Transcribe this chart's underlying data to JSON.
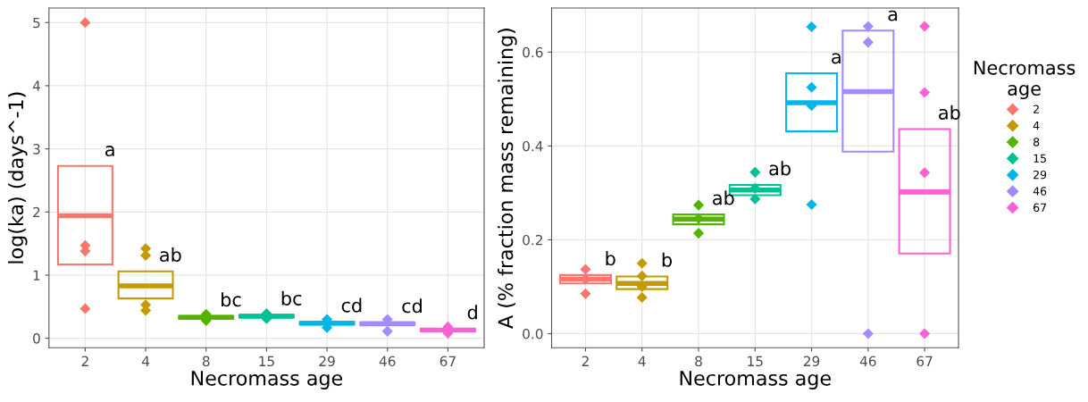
{
  "chart_data": [
    {
      "type": "box",
      "xlabel": "Necromass age",
      "ylabel": "log(ka) (days^-1)",
      "categories": [
        "2",
        "4",
        "8",
        "15",
        "29",
        "46",
        "67"
      ],
      "boxes": [
        {
          "q1": 1.17,
          "median": 1.94,
          "q3": 2.73
        },
        {
          "q1": 0.63,
          "median": 0.83,
          "q3": 1.06
        },
        {
          "q1": 0.31,
          "median": 0.33,
          "q3": 0.35
        },
        {
          "q1": 0.33,
          "median": 0.35,
          "q3": 0.37
        },
        {
          "q1": 0.22,
          "median": 0.24,
          "q3": 0.26
        },
        {
          "q1": 0.21,
          "median": 0.23,
          "q3": 0.25
        },
        {
          "q1": 0.11,
          "median": 0.13,
          "q3": 0.15
        }
      ],
      "colors": [
        "#f8766d",
        "#c49a00",
        "#53b400",
        "#00c094",
        "#00b6eb",
        "#a58aff",
        "#fb61d7"
      ],
      "series": [
        {
          "type": "scatter",
          "color": "#f8766d",
          "x": [
            "2",
            "2",
            "2",
            "2"
          ],
          "values": [
            5.0,
            1.38,
            1.47,
            0.47
          ]
        },
        {
          "type": "scatter",
          "color": "#c49a00",
          "x": [
            "4",
            "4",
            "4",
            "4"
          ],
          "values": [
            1.31,
            1.42,
            0.44,
            0.53
          ]
        },
        {
          "type": "scatter",
          "color": "#53b400",
          "x": [
            "8",
            "8"
          ],
          "values": [
            0.28,
            0.38
          ]
        },
        {
          "type": "scatter",
          "color": "#00c094",
          "x": [
            "15",
            "15"
          ],
          "values": [
            0.31,
            0.39
          ]
        },
        {
          "type": "scatter",
          "color": "#00b6eb",
          "x": [
            "29",
            "29"
          ],
          "values": [
            0.3,
            0.17
          ]
        },
        {
          "type": "scatter",
          "color": "#a58aff",
          "x": [
            "46",
            "46"
          ],
          "values": [
            0.3,
            0.11
          ]
        },
        {
          "type": "scatter",
          "color": "#fb61d7",
          "x": [
            "67",
            "67"
          ],
          "values": [
            0.18,
            0.08
          ]
        }
      ],
      "ylim": [
        -0.15,
        5.23
      ],
      "yticks": [
        0,
        1,
        2,
        3,
        4,
        5
      ],
      "grid": true,
      "legend": false,
      "marker": "diamond",
      "annotations": [
        {
          "text": "a",
          "x": "2",
          "y": 2.73
        },
        {
          "text": "ab",
          "x": "4",
          "y": 1.06
        },
        {
          "text": "bc",
          "x": "8",
          "y": 0.35
        },
        {
          "text": "bc",
          "x": "15",
          "y": 0.37
        },
        {
          "text": "cd",
          "x": "29",
          "y": 0.26
        },
        {
          "text": "cd",
          "x": "46",
          "y": 0.25
        },
        {
          "text": "d",
          "x": "67",
          "y": 0.15
        }
      ]
    },
    {
      "type": "box",
      "xlabel": "Necromass age",
      "ylabel": "A (% fraction mass remaining)",
      "categories": [
        "2",
        "4",
        "8",
        "15",
        "29",
        "46",
        "67"
      ],
      "boxes": [
        {
          "q1": 0.107,
          "median": 0.116,
          "q3": 0.125
        },
        {
          "q1": 0.095,
          "median": 0.107,
          "q3": 0.122
        },
        {
          "q1": 0.233,
          "median": 0.244,
          "q3": 0.254
        },
        {
          "q1": 0.295,
          "median": 0.306,
          "q3": 0.317
        },
        {
          "q1": 0.431,
          "median": 0.492,
          "q3": 0.555
        },
        {
          "q1": 0.388,
          "median": 0.516,
          "q3": 0.646
        },
        {
          "q1": 0.171,
          "median": 0.302,
          "q3": 0.436
        }
      ],
      "colors": [
        "#f8766d",
        "#c49a00",
        "#53b400",
        "#00c094",
        "#00b6eb",
        "#a58aff",
        "#fb61d7"
      ],
      "series": [
        {
          "type": "scatter",
          "name": "2",
          "color": "#f8766d",
          "x": [
            "2",
            "2",
            "2"
          ],
          "values": [
            0.137,
            0.116,
            0.085
          ]
        },
        {
          "type": "scatter",
          "name": "4",
          "color": "#c49a00",
          "x": [
            "4",
            "4",
            "4",
            "4"
          ],
          "values": [
            0.15,
            0.123,
            0.1,
            0.077
          ]
        },
        {
          "type": "scatter",
          "name": "8",
          "color": "#53b400",
          "x": [
            "8",
            "8",
            "8"
          ],
          "values": [
            0.274,
            0.245,
            0.214
          ]
        },
        {
          "type": "scatter",
          "name": "15",
          "color": "#00c094",
          "x": [
            "15",
            "15",
            "15"
          ],
          "values": [
            0.344,
            0.31,
            0.287
          ]
        },
        {
          "type": "scatter",
          "name": "29",
          "color": "#00b6eb",
          "x": [
            "29",
            "29",
            "29",
            "29"
          ],
          "values": [
            0.654,
            0.525,
            0.486,
            0.275
          ]
        },
        {
          "type": "scatter",
          "name": "46",
          "color": "#a58aff",
          "x": [
            "46",
            "46",
            "46"
          ],
          "values": [
            0.655,
            0.621,
            0.0
          ]
        },
        {
          "type": "scatter",
          "name": "67",
          "color": "#fb61d7",
          "x": [
            "67",
            "67",
            "67",
            "67"
          ],
          "values": [
            0.655,
            0.514,
            0.343,
            0.0
          ]
        }
      ],
      "ylim": [
        -0.03,
        0.694
      ],
      "yticks": [
        {
          "value": 0,
          "label": "0.0"
        },
        0.2,
        0.4,
        0.6
      ],
      "grid": true,
      "legend": "right",
      "legend_title": "Necromass\nage",
      "marker": "diamond",
      "annotations": [
        {
          "text": "b",
          "x": "2",
          "y": 0.125
        },
        {
          "text": "b",
          "x": "4",
          "y": 0.122
        },
        {
          "text": "ab",
          "x": "8",
          "y": 0.254
        },
        {
          "text": "ab",
          "x": "15",
          "y": 0.317
        },
        {
          "text": "a",
          "x": "29",
          "y": 0.555
        },
        {
          "text": "a",
          "x": "46",
          "y": 0.646
        },
        {
          "text": "ab",
          "x": "67",
          "y": 0.436
        }
      ]
    }
  ]
}
